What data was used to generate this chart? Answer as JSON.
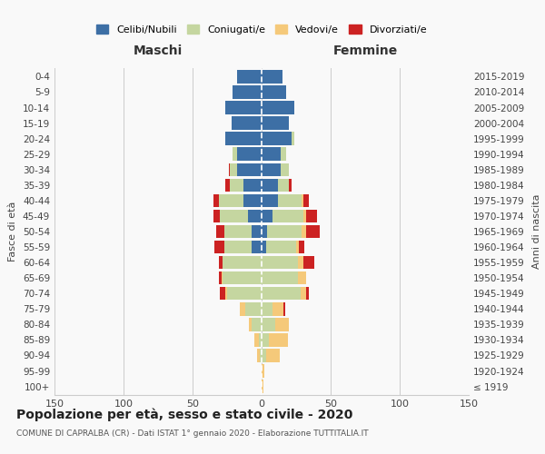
{
  "age_groups": [
    "100+",
    "95-99",
    "90-94",
    "85-89",
    "80-84",
    "75-79",
    "70-74",
    "65-69",
    "60-64",
    "55-59",
    "50-54",
    "45-49",
    "40-44",
    "35-39",
    "30-34",
    "25-29",
    "20-24",
    "15-19",
    "10-14",
    "5-9",
    "0-4"
  ],
  "birth_years": [
    "≤ 1919",
    "1920-1924",
    "1925-1929",
    "1930-1934",
    "1935-1939",
    "1940-1944",
    "1945-1949",
    "1950-1954",
    "1955-1959",
    "1960-1964",
    "1965-1969",
    "1970-1974",
    "1975-1979",
    "1980-1984",
    "1985-1989",
    "1990-1994",
    "1995-1999",
    "2000-2004",
    "2005-2009",
    "2010-2014",
    "2015-2019"
  ],
  "male_celibi": [
    0,
    0,
    0,
    0,
    0,
    0,
    0,
    0,
    0,
    7,
    7,
    10,
    13,
    13,
    18,
    18,
    26,
    22,
    26,
    21,
    18
  ],
  "male_coniugati": [
    0,
    0,
    1,
    2,
    7,
    12,
    25,
    28,
    28,
    20,
    20,
    20,
    18,
    10,
    5,
    3,
    0,
    0,
    0,
    0,
    0
  ],
  "male_vedovi": [
    0,
    0,
    2,
    3,
    2,
    4,
    1,
    1,
    0,
    0,
    0,
    0,
    0,
    0,
    0,
    0,
    0,
    0,
    0,
    0,
    0
  ],
  "male_divorziati": [
    0,
    0,
    0,
    0,
    0,
    0,
    4,
    2,
    3,
    7,
    6,
    5,
    4,
    3,
    1,
    0,
    0,
    0,
    0,
    0,
    0
  ],
  "female_celibi": [
    0,
    0,
    0,
    0,
    0,
    0,
    0,
    0,
    0,
    3,
    4,
    8,
    12,
    12,
    14,
    14,
    22,
    20,
    24,
    18,
    15
  ],
  "female_coniugati": [
    0,
    0,
    3,
    5,
    10,
    8,
    28,
    26,
    26,
    22,
    25,
    22,
    17,
    8,
    6,
    4,
    2,
    0,
    0,
    0,
    0
  ],
  "female_vedovi": [
    1,
    2,
    10,
    14,
    10,
    8,
    4,
    6,
    4,
    2,
    3,
    2,
    1,
    0,
    0,
    0,
    0,
    0,
    0,
    0,
    0
  ],
  "female_divorziati": [
    0,
    0,
    0,
    0,
    0,
    1,
    2,
    0,
    8,
    4,
    10,
    8,
    4,
    2,
    0,
    0,
    0,
    0,
    0,
    0,
    0
  ],
  "colors": {
    "celibi": "#3d6fa5",
    "coniugati": "#c5d6a0",
    "vedovi": "#f5c97a",
    "divorziati": "#cc2222"
  },
  "xlim": 150,
  "title": "Popolazione per età, sesso e stato civile - 2020",
  "subtitle": "COMUNE DI CAPRALBA (CR) - Dati ISTAT 1° gennaio 2020 - Elaborazione TUTTITALIA.IT",
  "ylabel_left": "Fasce di età",
  "ylabel_right": "Anni di nascita",
  "xlabel_maschi": "Maschi",
  "xlabel_femmine": "Femmine",
  "legend_labels": [
    "Celibi/Nubili",
    "Coniugati/e",
    "Vedovi/e",
    "Divorziati/e"
  ],
  "background_color": "#f9f9f9"
}
